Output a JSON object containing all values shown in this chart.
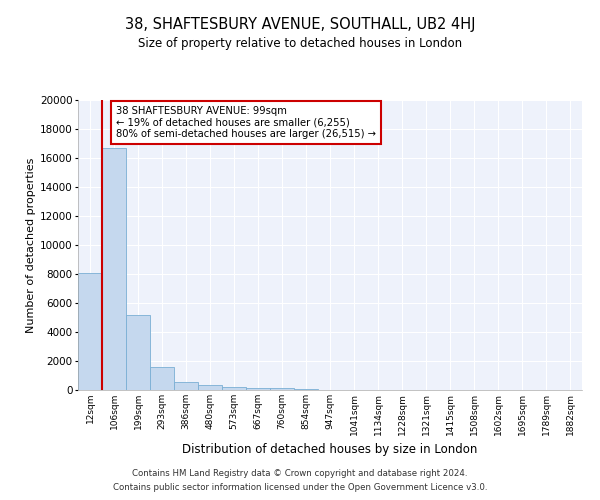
{
  "title": "38, SHAFTESBURY AVENUE, SOUTHALL, UB2 4HJ",
  "subtitle": "Size of property relative to detached houses in London",
  "xlabel": "Distribution of detached houses by size in London",
  "ylabel": "Number of detached properties",
  "bin_labels": [
    "12sqm",
    "106sqm",
    "199sqm",
    "293sqm",
    "386sqm",
    "480sqm",
    "573sqm",
    "667sqm",
    "760sqm",
    "854sqm",
    "947sqm",
    "1041sqm",
    "1134sqm",
    "1228sqm",
    "1321sqm",
    "1415sqm",
    "1508sqm",
    "1602sqm",
    "1695sqm",
    "1789sqm",
    "1882sqm"
  ],
  "bar_heights": [
    8050,
    16700,
    5200,
    1600,
    530,
    330,
    215,
    160,
    110,
    60,
    0,
    0,
    0,
    0,
    0,
    0,
    0,
    0,
    0,
    0,
    0
  ],
  "bar_color": "#c5d8ee",
  "bar_edge_color": "#7aafd4",
  "property_line_x": 0.5,
  "annotation_text": "38 SHAFTESBURY AVENUE: 99sqm\n← 19% of detached houses are smaller (6,255)\n80% of semi-detached houses are larger (26,515) →",
  "annotation_box_color": "#ffffff",
  "annotation_box_edge_color": "#cc0000",
  "property_line_color": "#cc0000",
  "ylim": [
    0,
    20000
  ],
  "yticks": [
    0,
    2000,
    4000,
    6000,
    8000,
    10000,
    12000,
    14000,
    16000,
    18000,
    20000
  ],
  "background_color": "#eef2fb",
  "grid_color": "#d0d8ee",
  "footer_line1": "Contains HM Land Registry data © Crown copyright and database right 2024.",
  "footer_line2": "Contains public sector information licensed under the Open Government Licence v3.0."
}
